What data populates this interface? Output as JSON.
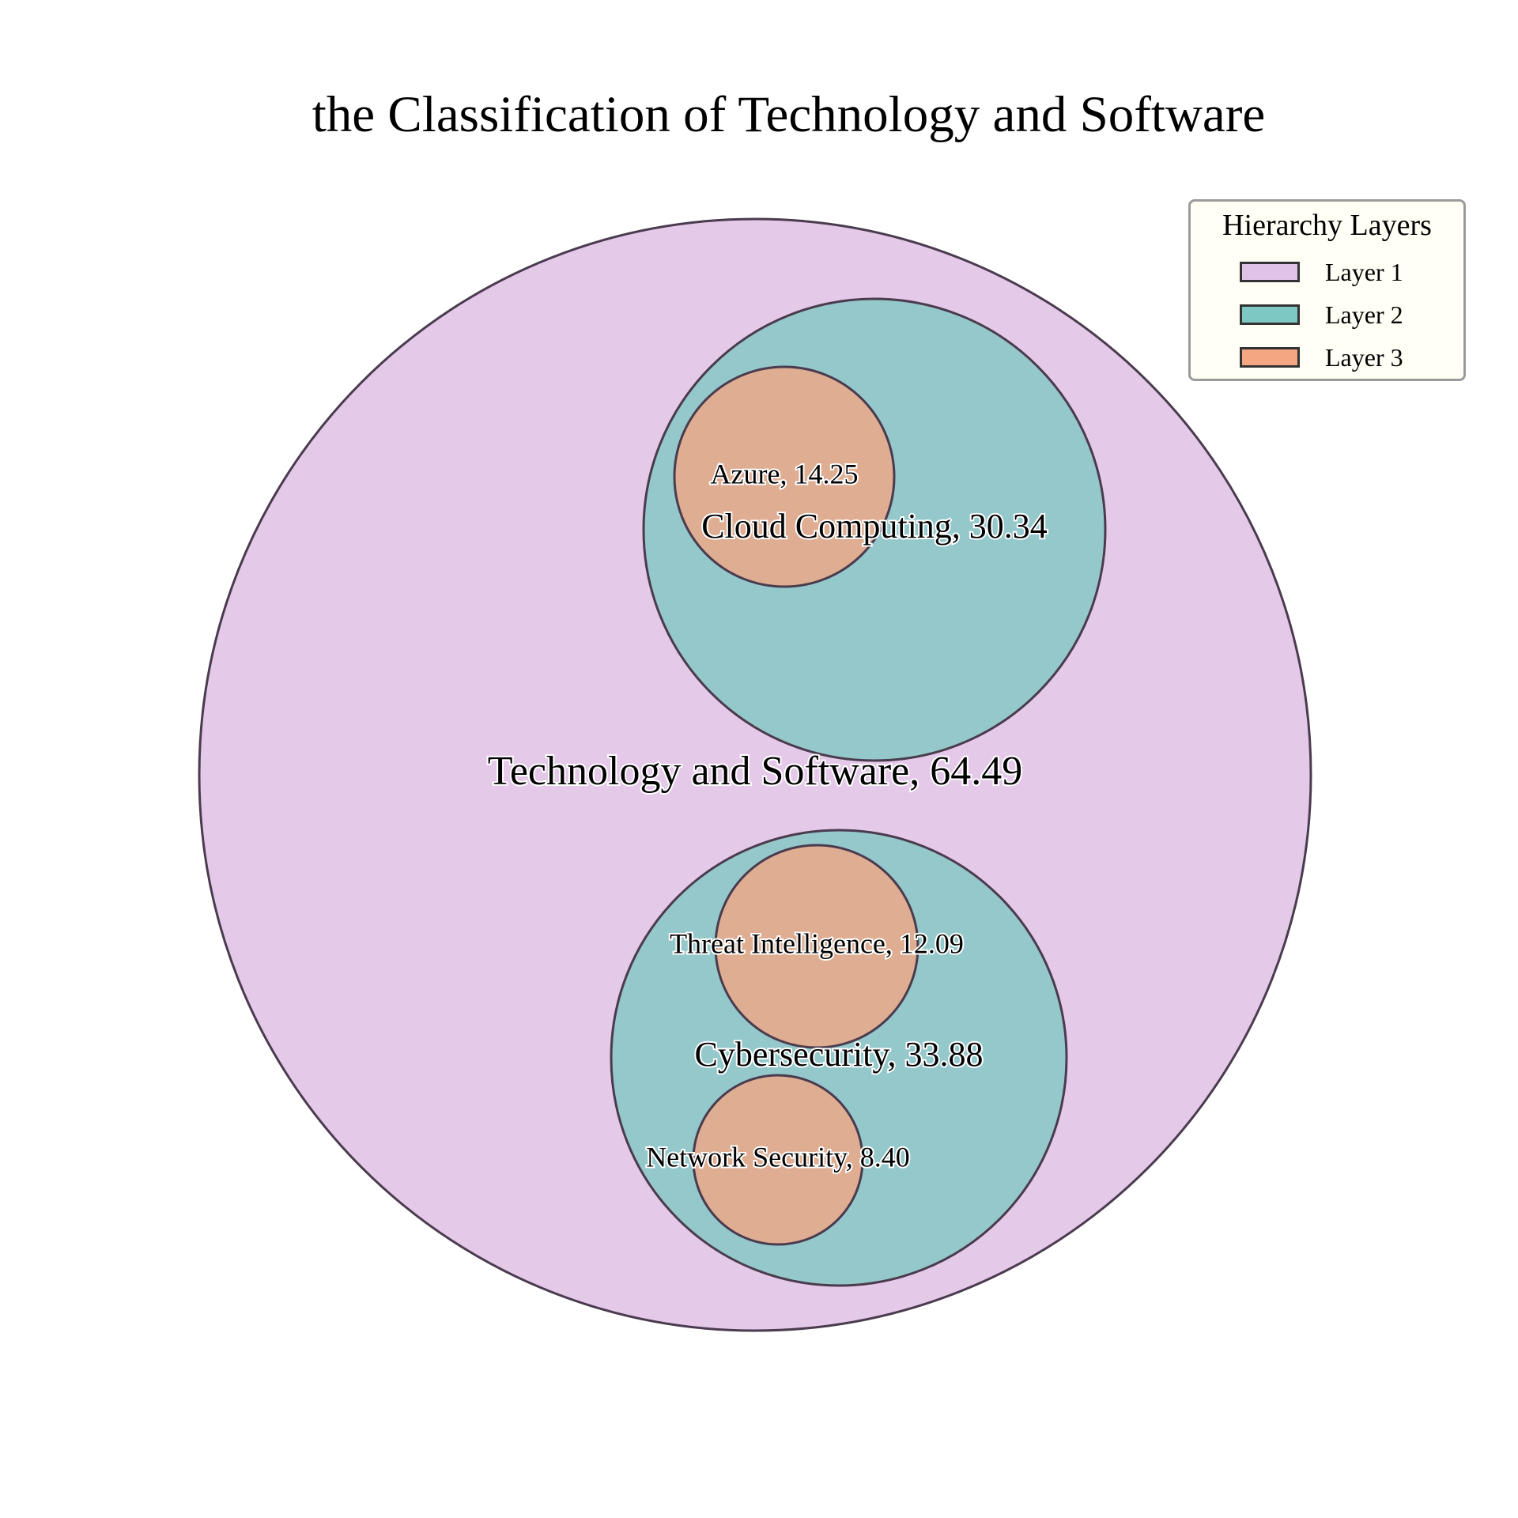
{
  "title": "the Classification of Technology and Software",
  "legend": {
    "title": "Hierarchy Layers",
    "items": [
      {
        "label": "Layer 1",
        "color": "#e0c2e6"
      },
      {
        "label": "Layer 2",
        "color": "#7dc8c3"
      },
      {
        "label": "Layer 3",
        "color": "#f4a582"
      }
    ]
  },
  "chart_data": {
    "type": "circle_packing",
    "title": "the Classification of Technology and Software",
    "nodes": [
      {
        "name": "Technology and Software",
        "value": 64.49,
        "layer": 1,
        "parent": null,
        "label": "Technology and Software, 64.49"
      },
      {
        "name": "Cloud Computing",
        "value": 30.34,
        "layer": 2,
        "parent": "Technology and Software",
        "label": "Cloud Computing, 30.34"
      },
      {
        "name": "Cybersecurity",
        "value": 33.88,
        "layer": 2,
        "parent": "Technology and Software",
        "label": "Cybersecurity, 33.88"
      },
      {
        "name": "Azure",
        "value": 14.25,
        "layer": 3,
        "parent": "Cloud Computing",
        "label": "Azure, 14.25"
      },
      {
        "name": "Threat Intelligence",
        "value": 12.09,
        "layer": 3,
        "parent": "Cybersecurity",
        "label": "Threat Intelligence, 12.09"
      },
      {
        "name": "Network Security",
        "value": 8.4,
        "layer": 3,
        "parent": "Cybersecurity",
        "label": "Network Security, 8.40"
      }
    ],
    "layer_colors": {
      "1": "#e0c2e6",
      "2": "#7dc8c3",
      "3": "#f4a582"
    },
    "legend_position": "top-right"
  }
}
